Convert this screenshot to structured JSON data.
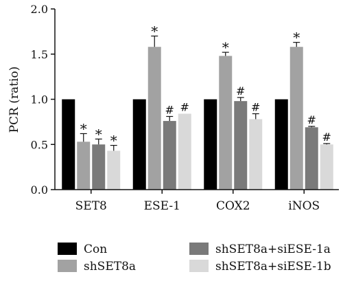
{
  "chart_data": {
    "type": "bar",
    "ylabel": "PCR (ratio)",
    "xlabel": "",
    "ylim": [
      0,
      2.0
    ],
    "yticks": [
      "0.0",
      "0.5",
      "1.0",
      "1.5",
      "2.0"
    ],
    "categories": [
      "SET8",
      "ESE-1",
      "COX2",
      "iNOS"
    ],
    "legend_position": "bottom",
    "series": [
      {
        "name": "Con",
        "color": "#000000",
        "values": [
          1.0,
          1.0,
          1.0,
          1.0
        ],
        "errors": [
          0,
          0,
          0,
          0
        ],
        "marks": [
          "",
          "",
          "",
          ""
        ]
      },
      {
        "name": "shSET8a",
        "color": "#a2a2a2",
        "values": [
          0.53,
          1.58,
          1.48,
          1.58
        ],
        "errors": [
          0.09,
          0.12,
          0.04,
          0.05
        ],
        "marks": [
          "*",
          "*",
          "*",
          "*"
        ]
      },
      {
        "name": "shSET8a+siESE-1a",
        "color": "#7a7a7a",
        "values": [
          0.5,
          0.76,
          0.98,
          0.69
        ],
        "errors": [
          0.06,
          0.05,
          0.04,
          0.01
        ],
        "marks": [
          "*",
          "#",
          "#",
          "#"
        ]
      },
      {
        "name": "shSET8a+siESE-1b",
        "color": "#d9d9d9",
        "values": [
          0.43,
          0.84,
          0.78,
          0.5
        ],
        "errors": [
          0.06,
          0.0,
          0.06,
          0.01
        ],
        "marks": [
          "*",
          "#",
          "#",
          "#"
        ]
      }
    ]
  }
}
